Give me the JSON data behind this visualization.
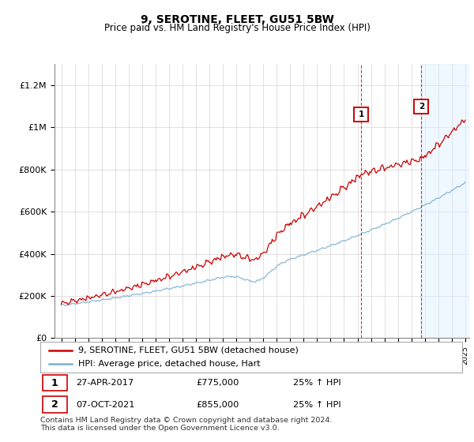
{
  "title": "9, SEROTINE, FLEET, GU51 5BW",
  "subtitle": "Price paid vs. HM Land Registry's House Price Index (HPI)",
  "ylim": [
    0,
    1300000
  ],
  "yticks": [
    0,
    200000,
    400000,
    600000,
    800000,
    1000000,
    1200000
  ],
  "ytick_labels": [
    "£0",
    "£200K",
    "£400K",
    "£600K",
    "£800K",
    "£1M",
    "£1.2M"
  ],
  "legend_line1": "9, SEROTINE, FLEET, GU51 5BW (detached house)",
  "legend_line2": "HPI: Average price, detached house, Hart",
  "sale1_date": "27-APR-2017",
  "sale1_price": 775000,
  "sale1_hpi": "25% ↑ HPI",
  "sale2_date": "07-OCT-2021",
  "sale2_price": 855000,
  "sale2_hpi": "25% ↑ HPI",
  "footer": "Contains HM Land Registry data © Crown copyright and database right 2024.\nThis data is licensed under the Open Government Licence v3.0.",
  "property_color": "#cc0000",
  "hpi_color": "#7ab0d4",
  "vline_color": "#cc0000",
  "title_fontsize": 10,
  "subtitle_fontsize": 8.5,
  "tick_fontsize": 8,
  "legend_fontsize": 8,
  "footer_fontsize": 6.8,
  "sale1_year": 2017.29,
  "sale2_year": 2021.75
}
